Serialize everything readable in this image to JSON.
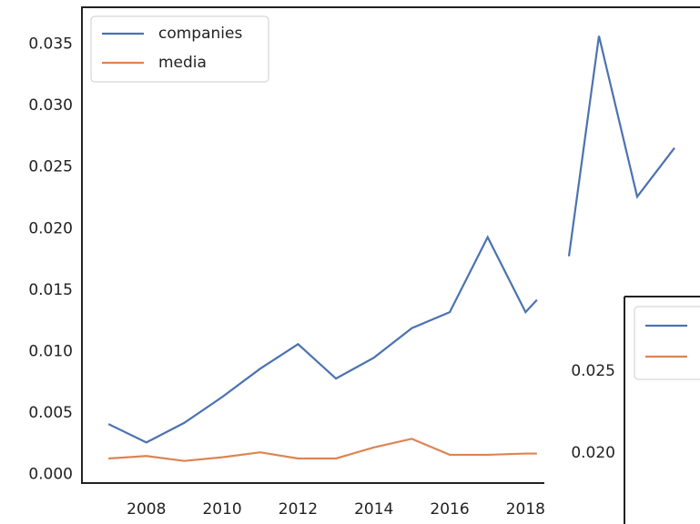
{
  "chart_data": [
    {
      "type": "line",
      "x": [
        2007,
        2008,
        2009,
        2010,
        2011,
        2012,
        2013,
        2014,
        2015,
        2016,
        2017,
        2018,
        2018.3
      ],
      "series": [
        {
          "name": "companies",
          "color": "#4c72b0",
          "values": [
            0.0041,
            0.0026,
            0.0042,
            0.0063,
            0.0086,
            0.0106,
            0.0078,
            0.0095,
            0.0119,
            0.0132,
            0.0193,
            0.0132,
            0.0142
          ]
        },
        {
          "name": "media",
          "color": "#dd8452",
          "values": [
            0.0013,
            0.0015,
            0.0011,
            0.0014,
            0.0018,
            0.0013,
            0.0013,
            0.0022,
            0.0029,
            0.0016,
            0.0016,
            0.0017,
            0.0017
          ]
        }
      ],
      "xlim": [
        2006.3,
        2022.6
      ],
      "xticks": [
        2008,
        2010,
        2012,
        2014,
        2016,
        2018
      ],
      "ylim": [
        -0.0007,
        0.038
      ],
      "yticks": [
        {
          "value": 0,
          "label": "0.000"
        },
        0.005,
        {
          "value": 0.01,
          "label": "0.010"
        },
        0.015,
        {
          "value": 0.02,
          "label": "0.020"
        },
        0.025,
        {
          "value": 0.03,
          "label": "0.030"
        },
        0.035
      ],
      "legend": "upper left"
    },
    {
      "type": "line",
      "categories": [
        null,
        null,
        null,
        null
      ],
      "series": [
        {
          "color": "#4c72b0",
          "values": [
            0.0174,
            0.0359,
            0.0224,
            0.0265
          ]
        }
      ],
      "ylim": [
        0.016,
        0.038
      ]
    },
    {
      "type": "legend-panel",
      "series": [
        {
          "color": "#4c72b0"
        },
        {
          "color": "#dd8452"
        }
      ],
      "ylim": [
        0.01567,
        0.031
      ],
      "yticks": [
        0.025,
        {
          "value": 0.02,
          "label": "0.020"
        }
      ],
      "legend": "upper right"
    }
  ]
}
